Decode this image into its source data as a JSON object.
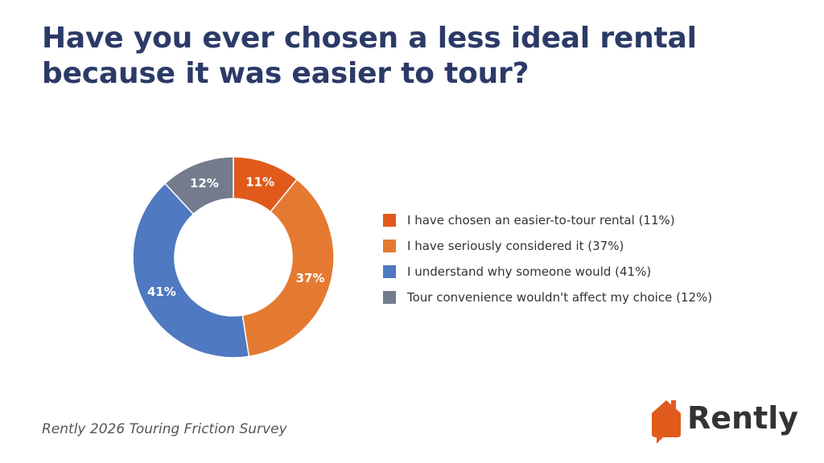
{
  "title": "Have you ever chosen a less ideal rental because it was easier to tour?",
  "source": "Rently 2026 Touring Friction Survey",
  "logo": {
    "text": "Rently",
    "icon": "house-speech-bubble-icon",
    "color": "#e05a1c"
  },
  "chart_data": {
    "type": "pie",
    "donut": true,
    "title": "Have you ever chosen a less ideal rental because it was easier to tour?",
    "legend_position": "right",
    "slices": [
      {
        "label": "I have chosen an easier-to-tour rental (11%)",
        "value": 11,
        "display": "11%",
        "color": "#e05a1c"
      },
      {
        "label": "I have seriously considered it (37%)",
        "value": 37,
        "display": "37%",
        "color": "#e47a31"
      },
      {
        "label": "I understand why someone would (41%)",
        "value": 41,
        "display": "41%",
        "color": "#4f79c0"
      },
      {
        "label": "Tour convenience wouldn't affect my choice (12%)",
        "value": 12,
        "display": "12%",
        "color": "#737b8c"
      }
    ]
  }
}
